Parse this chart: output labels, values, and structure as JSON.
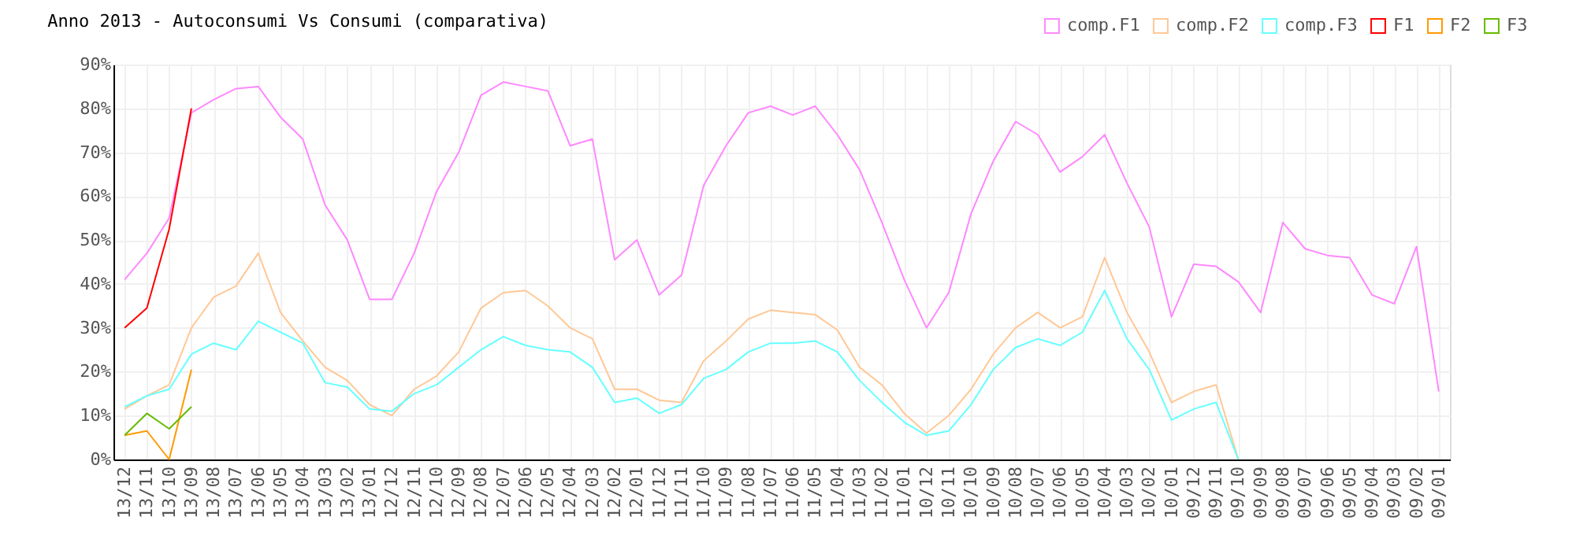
{
  "chart_data": {
    "type": "line",
    "title": "Anno 2013 - Autoconsumi Vs Consumi (comparativa)",
    "categories": [
      "13/12",
      "13/11",
      "13/10",
      "13/09",
      "13/08",
      "13/07",
      "13/06",
      "13/05",
      "13/04",
      "13/03",
      "13/02",
      "13/01",
      "12/12",
      "12/11",
      "12/10",
      "12/09",
      "12/08",
      "12/07",
      "12/06",
      "12/05",
      "12/04",
      "12/03",
      "12/02",
      "12/01",
      "11/12",
      "11/11",
      "11/10",
      "11/09",
      "11/08",
      "11/07",
      "11/06",
      "11/05",
      "11/04",
      "11/03",
      "11/02",
      "11/01",
      "10/12",
      "10/11",
      "10/10",
      "10/09",
      "10/08",
      "10/07",
      "10/06",
      "10/05",
      "10/04",
      "10/03",
      "10/02",
      "10/01",
      "09/12",
      "09/11",
      "09/10",
      "09/09",
      "09/08",
      "09/07",
      "09/06",
      "09/05",
      "09/04",
      "09/03",
      "09/02",
      "09/01"
    ],
    "series": [
      {
        "name": "comp.F1",
        "color": "#ff88ff",
        "values": [
          41,
          47,
          55,
          79,
          82,
          84.5,
          85,
          78,
          73,
          58,
          50,
          36.5,
          36.5,
          47,
          61,
          70,
          83,
          86,
          85,
          84,
          71.5,
          73,
          45.5,
          50,
          37.5,
          42,
          62.5,
          71.5,
          79,
          80.5,
          78.5,
          80.5,
          74,
          66,
          54,
          41,
          30,
          38,
          56,
          68,
          77,
          74,
          65.5,
          69,
          74,
          63,
          53,
          32.5,
          44.5,
          44,
          40.5,
          33.5,
          54,
          48,
          46.5,
          46,
          37.5,
          35.5,
          48.5,
          15.5
        ]
      },
      {
        "name": "comp.F2",
        "color": "#ffc896",
        "values": [
          11.5,
          14.5,
          17,
          30,
          37,
          39.5,
          47,
          33.5,
          27,
          21,
          18,
          12.5,
          10,
          16,
          19,
          24.5,
          34.5,
          38,
          38.5,
          35,
          30,
          27.5,
          16,
          16,
          13.5,
          13,
          22.5,
          27,
          32,
          34,
          33.5,
          33,
          29.5,
          21,
          17,
          10.5,
          6,
          10,
          16,
          24,
          30,
          33.5,
          30,
          32.5,
          46,
          33.5,
          24.5,
          13,
          15.5,
          17,
          0,
          null,
          null,
          null,
          null,
          null,
          null,
          null,
          null,
          null
        ]
      },
      {
        "name": "comp.F3",
        "color": "#66ffff",
        "values": [
          12,
          14.5,
          16,
          24,
          26.5,
          25,
          31.5,
          29,
          26.5,
          17.5,
          16.5,
          11.5,
          11,
          15,
          17,
          21,
          25,
          28,
          26,
          25,
          24.5,
          21,
          13,
          14,
          10.5,
          12.5,
          18.5,
          20.5,
          24.5,
          26.5,
          26.5,
          27,
          24.5,
          18,
          13,
          8.5,
          5.5,
          6.5,
          12.5,
          20.5,
          25.5,
          27.5,
          26,
          29,
          38.5,
          27.5,
          20.5,
          9,
          11.5,
          13,
          0,
          null,
          null,
          null,
          null,
          null,
          null,
          null,
          null,
          null
        ]
      },
      {
        "name": "F1",
        "color": "#ff0000",
        "values": [
          30,
          34.5,
          52.5,
          80,
          null,
          null,
          null,
          null,
          null,
          null,
          null,
          null,
          null,
          null,
          null,
          null,
          null,
          null,
          null,
          null,
          null,
          null,
          null,
          null,
          null,
          null,
          null,
          null,
          null,
          null,
          null,
          null,
          null,
          null,
          null,
          null,
          null,
          null,
          null,
          null,
          null,
          null,
          null,
          null,
          null,
          null,
          null,
          null,
          null,
          null,
          null,
          null,
          null,
          null,
          null,
          null,
          null,
          null,
          null,
          null
        ]
      },
      {
        "name": "F2",
        "color": "#ff9900",
        "values": [
          5.5,
          6.5,
          0,
          20.5,
          null,
          null,
          null,
          null,
          null,
          null,
          null,
          null,
          null,
          null,
          null,
          null,
          null,
          null,
          null,
          null,
          null,
          null,
          null,
          null,
          null,
          null,
          null,
          null,
          null,
          null,
          null,
          null,
          null,
          null,
          null,
          null,
          null,
          null,
          null,
          null,
          null,
          null,
          null,
          null,
          null,
          null,
          null,
          null,
          null,
          null,
          null,
          null,
          null,
          null,
          null,
          null,
          null,
          null,
          null,
          null
        ]
      },
      {
        "name": "F3",
        "color": "#66bb00",
        "values": [
          5.5,
          10.5,
          7,
          12,
          null,
          null,
          null,
          null,
          null,
          null,
          null,
          null,
          null,
          null,
          null,
          null,
          null,
          null,
          null,
          null,
          null,
          null,
          null,
          null,
          null,
          null,
          null,
          null,
          null,
          null,
          null,
          null,
          null,
          null,
          null,
          null,
          null,
          null,
          null,
          null,
          null,
          null,
          null,
          null,
          null,
          null,
          null,
          null,
          null,
          null,
          null,
          null,
          null,
          null,
          null,
          null,
          null,
          null,
          null,
          null
        ]
      }
    ],
    "ylim": [
      0,
      90
    ],
    "yticks": [
      {
        "value": 0,
        "label": "0%"
      },
      {
        "value": 10,
        "label": "10%"
      },
      {
        "value": 20,
        "label": "20%"
      },
      {
        "value": 30,
        "label": "30%"
      },
      {
        "value": 40,
        "label": "40%"
      },
      {
        "value": 50,
        "label": "50%"
      },
      {
        "value": 60,
        "label": "60%"
      },
      {
        "value": 70,
        "label": "70%"
      },
      {
        "value": 80,
        "label": "80%"
      },
      {
        "value": 90,
        "label": "90%"
      }
    ],
    "grid": true,
    "legend": "top right",
    "line_style": "solid",
    "marker": "none"
  }
}
